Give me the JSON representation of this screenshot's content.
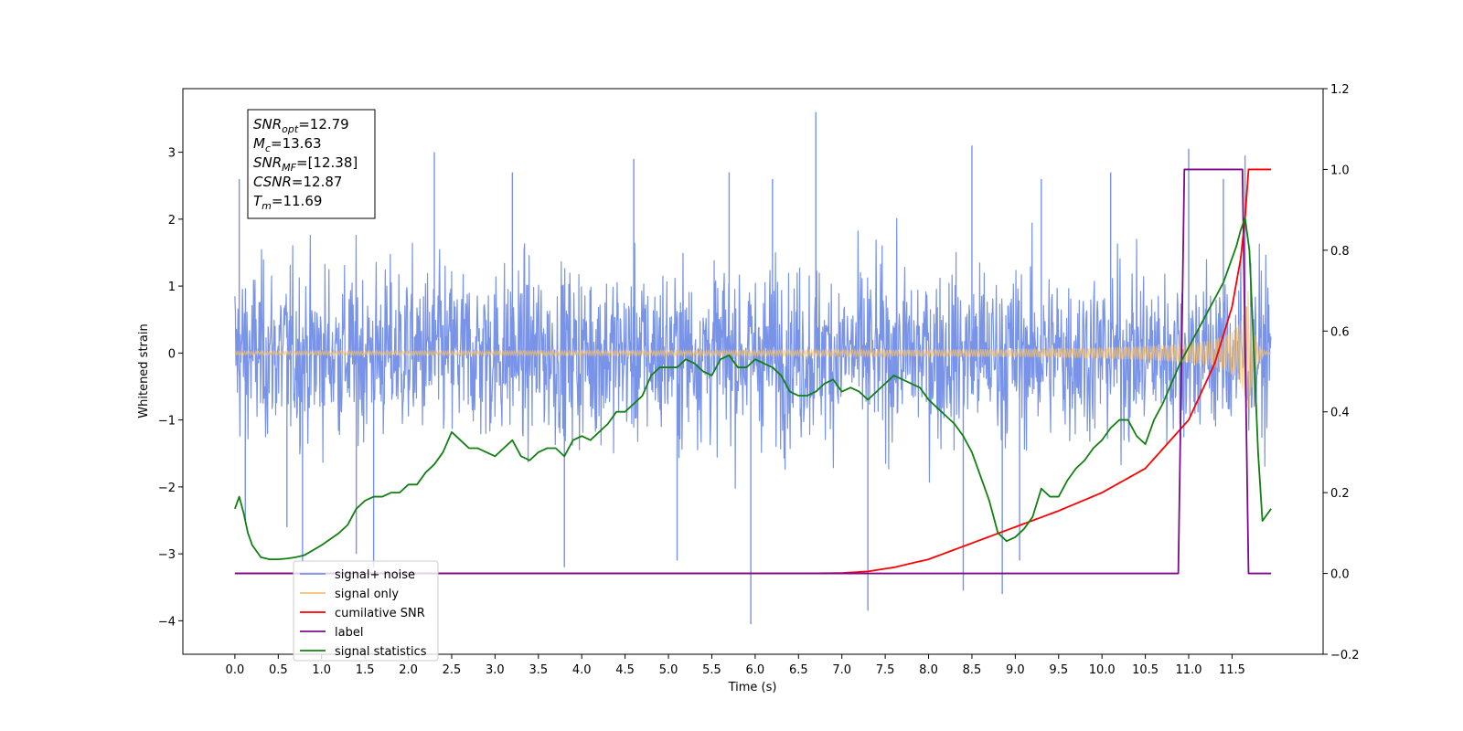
{
  "chart_data": {
    "type": "line",
    "xlabel": "Time (s)",
    "ylabel": "Whitened strain",
    "xlim": [
      -0.6,
      12.55
    ],
    "ylim": [
      -4.5,
      3.95
    ],
    "y2lim": [
      -0.2,
      1.2
    ],
    "grid": false,
    "legend_placement": "lower-left",
    "x_ticks": [
      0.0,
      0.5,
      1.0,
      1.5,
      2.0,
      2.5,
      3.0,
      3.5,
      4.0,
      4.5,
      5.0,
      5.5,
      6.0,
      6.5,
      7.0,
      7.5,
      8.0,
      8.5,
      9.0,
      9.5,
      10.0,
      10.5,
      11.0,
      11.5
    ],
    "x_tick_labels": [
      "0.0",
      "0.5",
      "1.0",
      "1.5",
      "2.0",
      "2.5",
      "3.0",
      "3.5",
      "4.0",
      "4.5",
      "5.0",
      "5.5",
      "6.0",
      "6.5",
      "7.0",
      "7.5",
      "8.0",
      "8.5",
      "9.0",
      "9.5",
      "10.0",
      "10.5",
      "11.0",
      "11.5"
    ],
    "y_ticks": [
      -4,
      -3,
      -2,
      -1,
      0,
      1,
      2,
      3
    ],
    "y_tick_labels": [
      "−4",
      "−3",
      "−2",
      "−1",
      "0",
      "1",
      "2",
      "3"
    ],
    "y2_ticks": [
      -0.2,
      0.0,
      0.2,
      0.4,
      0.6,
      0.8,
      1.0,
      1.2
    ],
    "y2_tick_labels": [
      "−0.2",
      "0.0",
      "0.2",
      "0.4",
      "0.6",
      "0.8",
      "1.0",
      "1.2"
    ],
    "annotation": {
      "lines": [
        {
          "sym": "SNR",
          "sub": "opt",
          "val": "=12.79"
        },
        {
          "sym": "M",
          "sub": "c",
          "val": "=13.63"
        },
        {
          "sym": "SNR",
          "sub": "MF",
          "val": "=[12.38]"
        },
        {
          "sym": "CSNR",
          "sub": "",
          "val": "=12.87"
        },
        {
          "sym": "T",
          "sub": "m",
          "val": "=11.69"
        }
      ]
    },
    "series": [
      {
        "name": "signal+ noise",
        "color": "#7893e8",
        "axis": "left",
        "noise_band": {
          "x_start": 0.0,
          "x_end": 11.95,
          "typical_amplitude": 1.6
        },
        "spikes": [
          {
            "x": 0.05,
            "y": 2.6
          },
          {
            "x": 0.12,
            "y": -2.5
          },
          {
            "x": 0.6,
            "y": -2.6
          },
          {
            "x": 0.78,
            "y": -3.1
          },
          {
            "x": 1.4,
            "y": -3.0
          },
          {
            "x": 1.6,
            "y": -3.2
          },
          {
            "x": 2.3,
            "y": 3.0
          },
          {
            "x": 3.2,
            "y": 2.7
          },
          {
            "x": 3.8,
            "y": -3.2
          },
          {
            "x": 4.6,
            "y": 2.9
          },
          {
            "x": 5.1,
            "y": -3.1
          },
          {
            "x": 5.7,
            "y": 2.7
          },
          {
            "x": 5.95,
            "y": -4.05
          },
          {
            "x": 6.2,
            "y": 2.6
          },
          {
            "x": 6.7,
            "y": 3.6
          },
          {
            "x": 7.3,
            "y": -3.85
          },
          {
            "x": 8.4,
            "y": -3.55
          },
          {
            "x": 8.5,
            "y": 3.1
          },
          {
            "x": 8.85,
            "y": -3.6
          },
          {
            "x": 9.05,
            "y": -3.1
          },
          {
            "x": 9.3,
            "y": 2.6
          },
          {
            "x": 10.1,
            "y": 2.7
          },
          {
            "x": 11.0,
            "y": 3.05
          },
          {
            "x": 11.4,
            "y": 2.6
          },
          {
            "x": 11.65,
            "y": 2.95
          }
        ]
      },
      {
        "name": "signal only",
        "color": "#f5c06e",
        "axis": "left",
        "chirp": {
          "x_start": 0.0,
          "x_end": 11.95,
          "merger_x": 11.69,
          "peak_amplitude": 1.05
        }
      },
      {
        "name": "cumilative SNR",
        "color": "#ff0000",
        "axis": "right",
        "x": [
          0.0,
          6.5,
          7.0,
          7.3,
          7.6,
          8.0,
          8.5,
          9.0,
          9.5,
          10.0,
          10.5,
          11.0,
          11.3,
          11.5,
          11.6,
          11.65,
          11.69,
          11.7,
          11.95
        ],
        "y": [
          0.0,
          0.0,
          0.001,
          0.005,
          0.015,
          0.035,
          0.075,
          0.115,
          0.155,
          0.2,
          0.26,
          0.38,
          0.52,
          0.66,
          0.78,
          0.88,
          1.0,
          1.0,
          1.0
        ]
      },
      {
        "name": "label",
        "color": "#7b0b8a",
        "axis": "right",
        "x": [
          0.0,
          10.88,
          10.95,
          11.62,
          11.69,
          11.95
        ],
        "y": [
          0.0,
          0.0,
          1.0,
          1.0,
          0.0,
          0.0
        ]
      },
      {
        "name": "signal statistics",
        "color": "#118011",
        "axis": "right",
        "x": [
          0.0,
          0.05,
          0.1,
          0.15,
          0.2,
          0.3,
          0.4,
          0.5,
          0.6,
          0.7,
          0.8,
          1.0,
          1.2,
          1.3,
          1.4,
          1.5,
          1.6,
          1.7,
          1.8,
          1.9,
          2.0,
          2.1,
          2.2,
          2.3,
          2.4,
          2.5,
          2.6,
          2.7,
          2.8,
          2.9,
          3.0,
          3.1,
          3.2,
          3.3,
          3.4,
          3.5,
          3.6,
          3.7,
          3.8,
          3.9,
          4.0,
          4.1,
          4.2,
          4.3,
          4.4,
          4.5,
          4.6,
          4.7,
          4.8,
          4.9,
          5.0,
          5.1,
          5.2,
          5.3,
          5.4,
          5.5,
          5.6,
          5.7,
          5.8,
          5.9,
          6.0,
          6.1,
          6.2,
          6.3,
          6.4,
          6.5,
          6.6,
          6.7,
          6.8,
          6.9,
          7.0,
          7.1,
          7.2,
          7.3,
          7.4,
          7.5,
          7.6,
          7.7,
          7.8,
          7.9,
          8.0,
          8.1,
          8.2,
          8.3,
          8.4,
          8.5,
          8.6,
          8.7,
          8.8,
          8.9,
          9.0,
          9.1,
          9.2,
          9.3,
          9.4,
          9.5,
          9.6,
          9.7,
          9.8,
          9.9,
          10.0,
          10.1,
          10.2,
          10.3,
          10.4,
          10.5,
          10.6,
          10.7,
          10.8,
          10.9,
          11.0,
          11.1,
          11.2,
          11.3,
          11.4,
          11.5,
          11.55,
          11.6,
          11.65,
          11.7,
          11.75,
          11.8,
          11.85,
          11.95
        ],
        "y": [
          0.16,
          0.19,
          0.15,
          0.1,
          0.07,
          0.04,
          0.035,
          0.035,
          0.037,
          0.04,
          0.045,
          0.07,
          0.1,
          0.12,
          0.16,
          0.18,
          0.19,
          0.19,
          0.2,
          0.2,
          0.22,
          0.22,
          0.25,
          0.27,
          0.3,
          0.35,
          0.33,
          0.31,
          0.31,
          0.3,
          0.29,
          0.31,
          0.33,
          0.29,
          0.28,
          0.3,
          0.31,
          0.31,
          0.29,
          0.33,
          0.34,
          0.33,
          0.35,
          0.37,
          0.4,
          0.4,
          0.42,
          0.44,
          0.49,
          0.51,
          0.51,
          0.51,
          0.53,
          0.52,
          0.5,
          0.49,
          0.53,
          0.54,
          0.51,
          0.51,
          0.53,
          0.52,
          0.51,
          0.49,
          0.45,
          0.44,
          0.44,
          0.45,
          0.47,
          0.48,
          0.45,
          0.46,
          0.45,
          0.43,
          0.45,
          0.47,
          0.49,
          0.48,
          0.47,
          0.46,
          0.43,
          0.41,
          0.39,
          0.37,
          0.34,
          0.3,
          0.24,
          0.18,
          0.1,
          0.08,
          0.09,
          0.11,
          0.14,
          0.21,
          0.19,
          0.19,
          0.23,
          0.26,
          0.28,
          0.31,
          0.33,
          0.36,
          0.38,
          0.38,
          0.34,
          0.32,
          0.38,
          0.42,
          0.47,
          0.52,
          0.56,
          0.6,
          0.64,
          0.68,
          0.72,
          0.78,
          0.81,
          0.85,
          0.88,
          0.8,
          0.56,
          0.3,
          0.13,
          0.16
        ]
      }
    ],
    "legend": [
      {
        "name": "signal+ noise",
        "color": "#7893e8"
      },
      {
        "name": "signal only",
        "color": "#f5c06e"
      },
      {
        "name": "cumilative SNR",
        "color": "#ff0000"
      },
      {
        "name": "label",
        "color": "#7b0b8a"
      },
      {
        "name": "signal statistics",
        "color": "#118011"
      }
    ]
  }
}
